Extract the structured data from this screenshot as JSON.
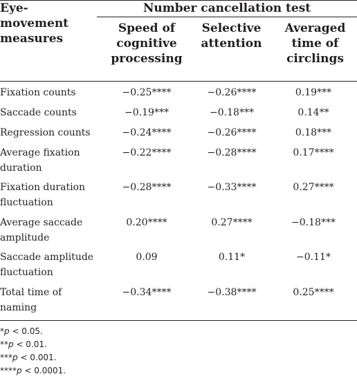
{
  "table": {
    "stub_header": "Eye-\nmovement\nmeasures",
    "span_header": "Number cancellation test",
    "column_headers": [
      "Speed of\ncognitive\nprocessing",
      "Selective\nattention",
      "Averaged\ntime of\ncirclings"
    ],
    "rows": [
      {
        "label": "Fixation counts",
        "values": [
          "−0.25****",
          "−0.26****",
          "0.19***"
        ]
      },
      {
        "label": "Saccade counts",
        "values": [
          "−0.19***",
          "−0.18***",
          "0.14**"
        ]
      },
      {
        "label": "Regression counts",
        "values": [
          "−0.24****",
          "−0.26****",
          "0.18***"
        ]
      },
      {
        "label": "Average fixation\nduration",
        "values": [
          "−0.22****",
          "−0.28****",
          "0.17****"
        ]
      },
      {
        "label": "Fixation duration\nfluctuation",
        "values": [
          "−0.28****",
          "−0.33****",
          "0.27****"
        ]
      },
      {
        "label": "Average saccade\namplitude",
        "values": [
          "0.20****",
          "0.27****",
          "−0.18***"
        ]
      },
      {
        "label": "Saccade amplitude\nfluctuation",
        "values": [
          "0.09",
          "0.11*",
          "−0.11*"
        ]
      },
      {
        "label": "Total time of\nnaming",
        "values": [
          "−0.34****",
          "−0.38****",
          "0.25****"
        ]
      }
    ]
  },
  "footnotes": [
    {
      "stars": "*",
      "p": "p",
      "rest": " < 0.05."
    },
    {
      "stars": "**",
      "p": "p",
      "rest": " < 0.01."
    },
    {
      "stars": "***",
      "p": "p",
      "rest": " < 0.001."
    },
    {
      "stars": "****",
      "p": "p",
      "rest": " < 0.0001."
    }
  ]
}
